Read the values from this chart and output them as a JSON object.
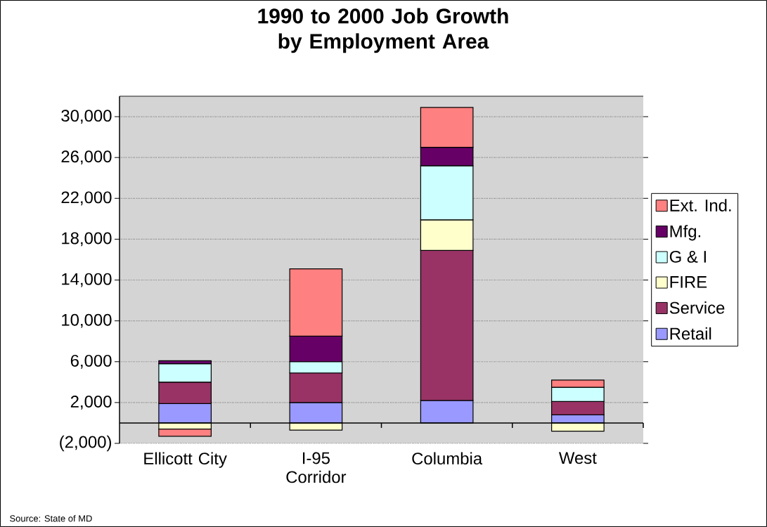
{
  "chart_data": {
    "type": "bar",
    "stacked": true,
    "title": "1990 to 2000 Job Growth by Employment Area",
    "categories": [
      "Ellicott City",
      "I-95 Corridor",
      "Columbia",
      "West"
    ],
    "series": [
      {
        "name": "Retail",
        "color": "#9999ff",
        "values": [
          1900,
          2000,
          2200,
          800
        ]
      },
      {
        "name": "Service",
        "color": "#993366",
        "values": [
          2100,
          2900,
          14700,
          1300
        ]
      },
      {
        "name": "FIRE",
        "color": "#ffffcc",
        "values": [
          -600,
          -700,
          3000,
          -800
        ]
      },
      {
        "name": "G & I",
        "color": "#ccffff",
        "values": [
          1800,
          1100,
          5300,
          1400
        ]
      },
      {
        "name": "Mfg.",
        "color": "#660066",
        "values": [
          300,
          2500,
          1800,
          null
        ]
      },
      {
        "name": "Ext. Ind.",
        "color": "#ff8080",
        "values": [
          -700,
          6600,
          3900,
          700
        ]
      }
    ],
    "ylim": [
      -2000,
      32000
    ],
    "yticks": [
      {
        "value": -2000,
        "label": "(2,000)"
      },
      {
        "value": 2000,
        "label": "2,000"
      },
      {
        "value": 6000,
        "label": "6,000"
      },
      {
        "value": 10000,
        "label": "10,000"
      },
      {
        "value": 14000,
        "label": "14,000"
      },
      {
        "value": 18000,
        "label": "18,000"
      },
      {
        "value": 22000,
        "label": "22,000"
      },
      {
        "value": 26000,
        "label": "26,000"
      },
      {
        "value": 30000,
        "label": "30,000"
      }
    ],
    "grid": "y",
    "legend": "right",
    "annotations": [
      "Source: State of MD"
    ]
  }
}
